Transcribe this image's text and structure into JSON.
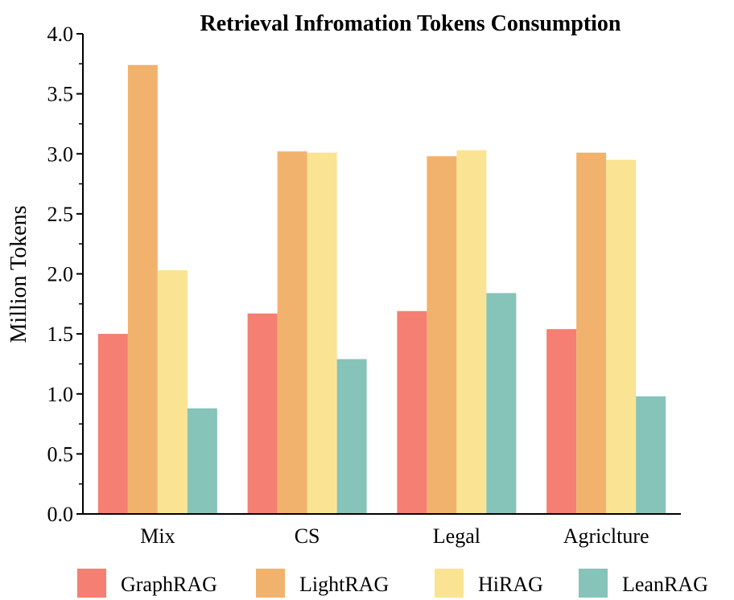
{
  "chart_data": {
    "type": "bar",
    "title": "Retrieval Infromation Tokens Consumption",
    "xlabel": "",
    "ylabel": "Million Tokens",
    "ylim": [
      0,
      4.0
    ],
    "yticks": [
      "0.0",
      "0.5",
      "1.0",
      "1.5",
      "2.0",
      "2.5",
      "3.0",
      "3.5",
      "4.0"
    ],
    "categories": [
      "Mix",
      "CS",
      "Legal",
      "Agriclture"
    ],
    "series": [
      {
        "name": "GraphRAG",
        "color": "#F47F72",
        "values": [
          1.5,
          1.67,
          1.69,
          1.54
        ]
      },
      {
        "name": "LightRAG",
        "color": "#F1B26E",
        "values": [
          3.74,
          3.02,
          2.98,
          3.01
        ]
      },
      {
        "name": "HiRAG",
        "color": "#FBE394",
        "values": [
          2.03,
          3.01,
          3.03,
          2.95
        ]
      },
      {
        "name": "LeanRAG",
        "color": "#86C3B9",
        "values": [
          0.88,
          1.29,
          1.84,
          0.98
        ]
      }
    ],
    "legend_position": "bottom",
    "grid": false
  }
}
